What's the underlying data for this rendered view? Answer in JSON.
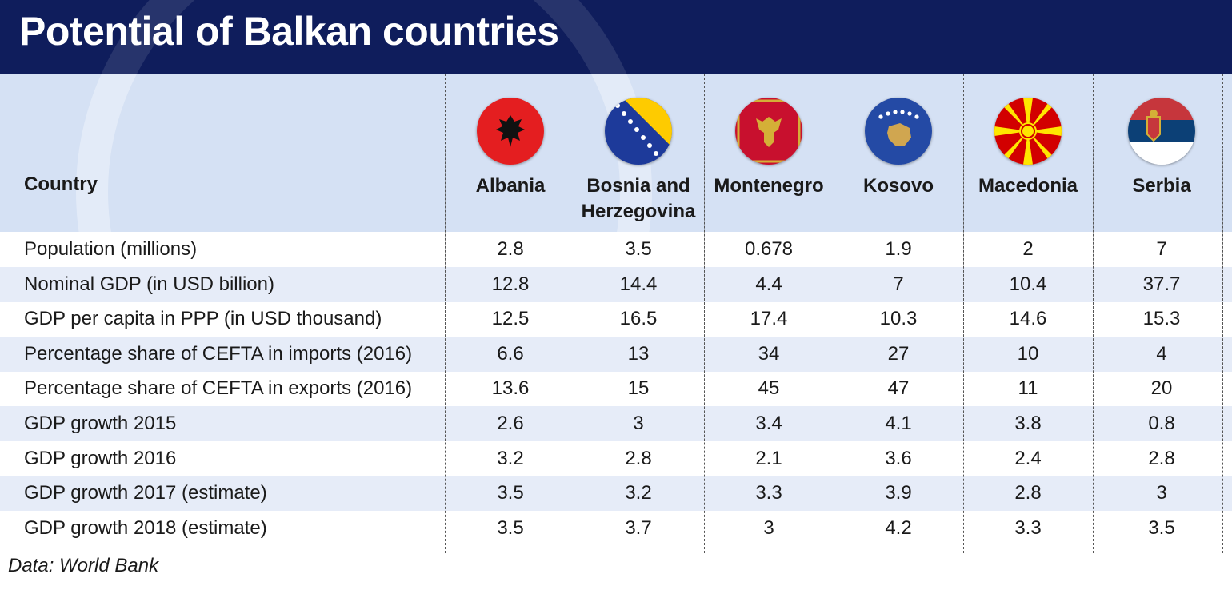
{
  "title": "Potential of Balkan countries",
  "source": "Data: World Bank",
  "colors": {
    "header_bg": "#0f1d5c",
    "head_band": "#d5e1f4",
    "row_alt": "#e6ecf8"
  },
  "table": {
    "row_header_label": "Country",
    "columns": [
      {
        "name": "Albania",
        "name_line2": "",
        "flag": "albania-flag-icon"
      },
      {
        "name": "Bosnia and",
        "name_line2": "Herzegovina",
        "flag": "bosnia-flag-icon"
      },
      {
        "name": "Montenegro",
        "name_line2": "",
        "flag": "montenegro-flag-icon"
      },
      {
        "name": "Kosovo",
        "name_line2": "",
        "flag": "kosovo-flag-icon"
      },
      {
        "name": "Macedonia",
        "name_line2": "",
        "flag": "macedonia-flag-icon"
      },
      {
        "name": "Serbia",
        "name_line2": "",
        "flag": "serbia-flag-icon"
      }
    ],
    "rows": [
      {
        "label": "Population (millions)",
        "values": [
          "2.8",
          "3.5",
          "0.678",
          "1.9",
          "2",
          "7"
        ]
      },
      {
        "label": "Nominal GDP (in USD billion)",
        "values": [
          "12.8",
          "14.4",
          "4.4",
          "7",
          "10.4",
          "37.7"
        ]
      },
      {
        "label": "GDP per capita in PPP (in USD thousand)",
        "values": [
          "12.5",
          "16.5",
          "17.4",
          "10.3",
          "14.6",
          "15.3"
        ]
      },
      {
        "label": "Percentage share of CEFTA in imports (2016)",
        "values": [
          "6.6",
          "13",
          "34",
          "27",
          "10",
          "4"
        ]
      },
      {
        "label": "Percentage share of CEFTA in exports (2016)",
        "values": [
          "13.6",
          "15",
          "45",
          "47",
          "11",
          "20"
        ]
      },
      {
        "label": "GDP growth 2015",
        "values": [
          "2.6",
          "3",
          "3.4",
          "4.1",
          "3.8",
          "0.8"
        ]
      },
      {
        "label": "GDP growth 2016",
        "values": [
          "3.2",
          "2.8",
          "2.1",
          "3.6",
          "2.4",
          "2.8"
        ]
      },
      {
        "label": "GDP growth 2017 (estimate)",
        "values": [
          "3.5",
          "3.2",
          "3.3",
          "3.9",
          "2.8",
          "3"
        ]
      },
      {
        "label": "GDP growth 2018 (estimate)",
        "values": [
          "3.5",
          "3.7",
          "3",
          "4.2",
          "3.3",
          "3.5"
        ]
      }
    ]
  },
  "chart_data": {
    "type": "table",
    "title": "Potential of Balkan countries",
    "columns": [
      "Country",
      "Albania",
      "Bosnia and Herzegovina",
      "Montenegro",
      "Kosovo",
      "Macedonia",
      "Serbia"
    ],
    "rows": [
      [
        "Population (millions)",
        2.8,
        3.5,
        0.678,
        1.9,
        2,
        7
      ],
      [
        "Nominal GDP (in USD billion)",
        12.8,
        14.4,
        4.4,
        7,
        10.4,
        37.7
      ],
      [
        "GDP per capita in PPP (in USD thousand)",
        12.5,
        16.5,
        17.4,
        10.3,
        14.6,
        15.3
      ],
      [
        "Percentage share of CEFTA in imports (2016)",
        6.6,
        13,
        34,
        27,
        10,
        4
      ],
      [
        "Percentage share of CEFTA in exports (2016)",
        13.6,
        15,
        45,
        47,
        11,
        20
      ],
      [
        "GDP growth 2015",
        2.6,
        3,
        3.4,
        4.1,
        3.8,
        0.8
      ],
      [
        "GDP growth 2016",
        3.2,
        2.8,
        2.1,
        3.6,
        2.4,
        2.8
      ],
      [
        "GDP growth 2017 (estimate)",
        3.5,
        3.2,
        3.3,
        3.9,
        2.8,
        3
      ],
      [
        "GDP growth 2018 (estimate)",
        3.5,
        3.7,
        3,
        4.2,
        3.3,
        3.5
      ]
    ]
  }
}
